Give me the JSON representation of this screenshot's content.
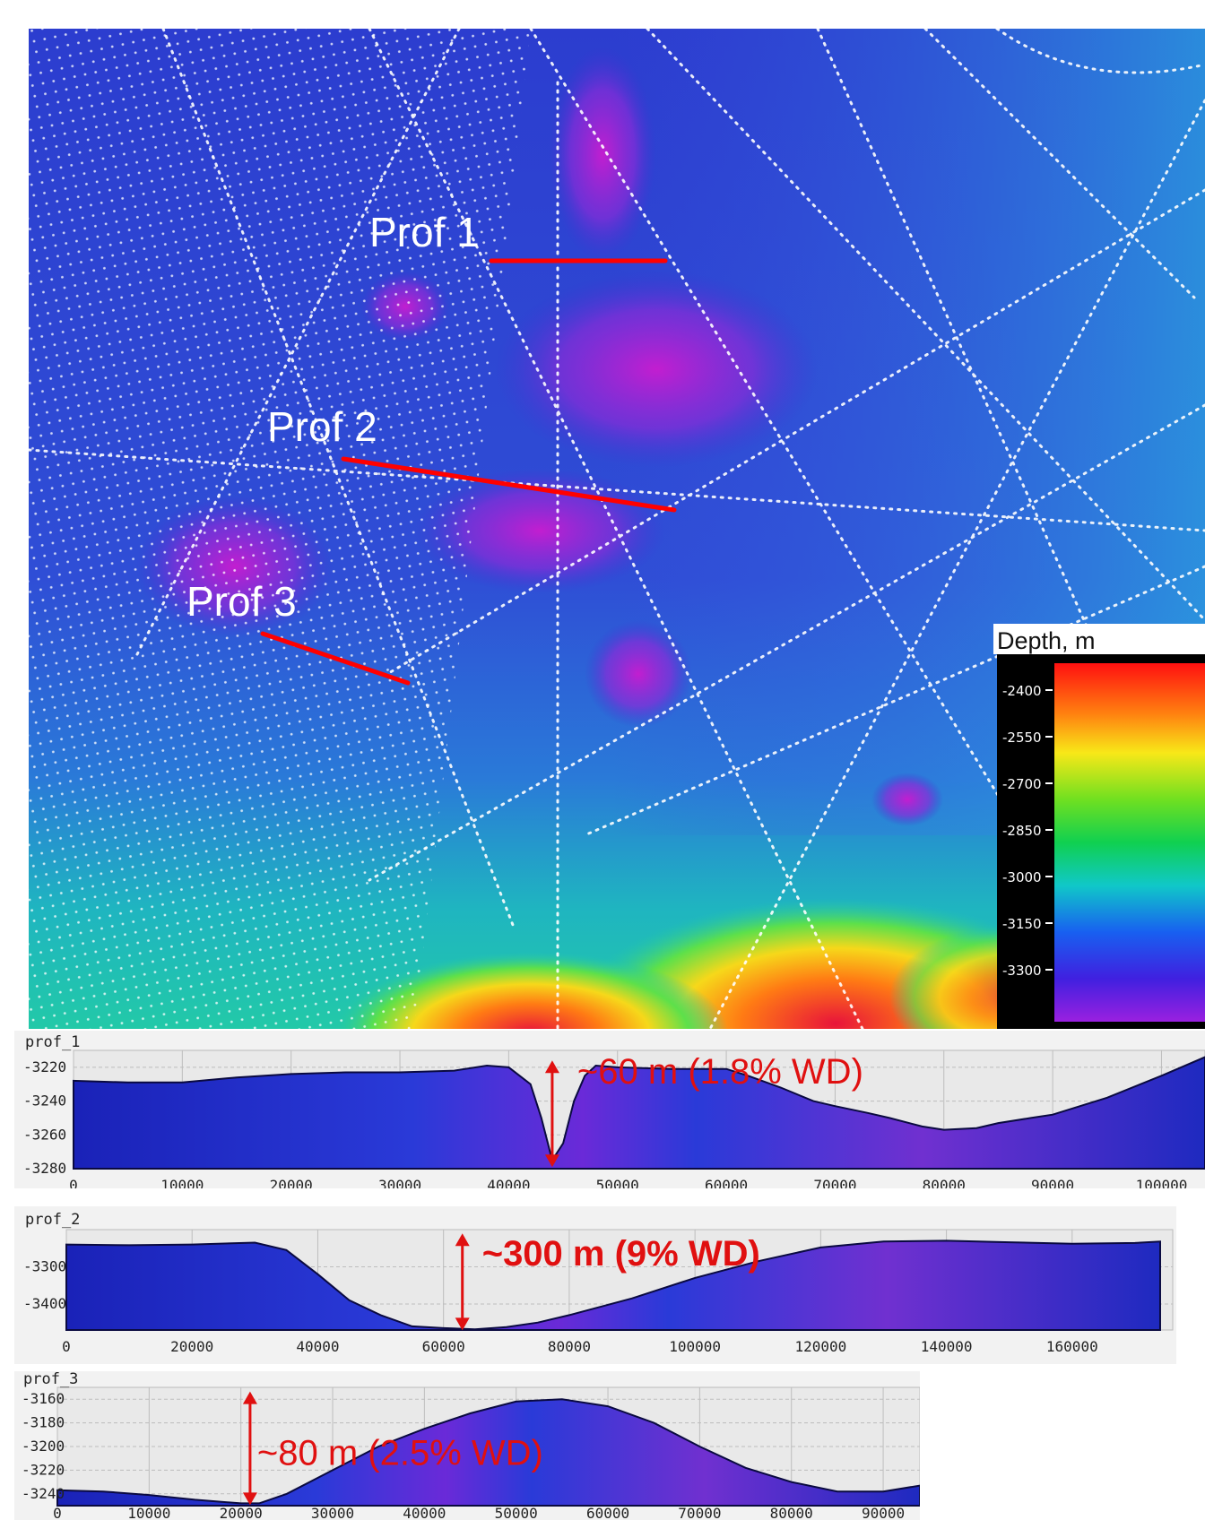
{
  "map": {
    "profiles": [
      {
        "label": "Prof 1"
      },
      {
        "label": "Prof 2"
      },
      {
        "label": "Prof 3"
      }
    ],
    "profile_line_color": "#ff0000",
    "colorbar": {
      "title": "Depth, m",
      "ticks": [
        "-2400",
        "-2550",
        "-2700",
        "-2850",
        "-3000",
        "-3150",
        "-3300"
      ]
    }
  },
  "chart_data": [
    {
      "type": "area",
      "title": "prof_1",
      "xlim": [
        0,
        104000
      ],
      "ylim": [
        -3280,
        -3210
      ],
      "xticks": [
        0,
        10000,
        20000,
        30000,
        40000,
        50000,
        60000,
        70000,
        80000,
        90000,
        100000
      ],
      "yticks": [
        -3220,
        -3240,
        -3260,
        -3280
      ],
      "x": [
        0,
        5000,
        10000,
        15000,
        20000,
        25000,
        30000,
        35000,
        38000,
        40000,
        42000,
        43000,
        44000,
        45000,
        46000,
        47000,
        48000,
        50000,
        55000,
        60000,
        62000,
        65000,
        68000,
        70000,
        73000,
        75000,
        78000,
        80000,
        83000,
        85000,
        88000,
        90000,
        95000,
        100000,
        104000
      ],
      "y": [
        -3228,
        -3229,
        -3229,
        -3226,
        -3224,
        -3223,
        -3223,
        -3222,
        -3219,
        -3220,
        -3230,
        -3250,
        -3275,
        -3265,
        -3240,
        -3225,
        -3219,
        -3220,
        -3221,
        -3221,
        -3225,
        -3232,
        -3240,
        -3243,
        -3247,
        -3250,
        -3255,
        -3257,
        -3256,
        -3253,
        -3250,
        -3248,
        -3238,
        -3225,
        -3214
      ],
      "annotation": {
        "text": "~60 m (1.8% WD)",
        "x": 44000,
        "y_top": -3217,
        "y_bottom": -3278
      }
    },
    {
      "type": "area",
      "title": "prof_2",
      "xlim": [
        0,
        176000
      ],
      "ylim": [
        -3470,
        -3200
      ],
      "xticks": [
        0,
        20000,
        40000,
        60000,
        80000,
        100000,
        120000,
        140000,
        160000
      ],
      "yticks": [
        -3300,
        -3400
      ],
      "x": [
        0,
        10000,
        20000,
        30000,
        35000,
        40000,
        45000,
        50000,
        55000,
        60000,
        65000,
        70000,
        75000,
        80000,
        90000,
        100000,
        110000,
        120000,
        130000,
        140000,
        150000,
        160000,
        170000,
        174000
      ],
      "y": [
        -3240,
        -3242,
        -3240,
        -3235,
        -3255,
        -3320,
        -3390,
        -3430,
        -3460,
        -3465,
        -3468,
        -3462,
        -3450,
        -3430,
        -3385,
        -3330,
        -3285,
        -3248,
        -3232,
        -3230,
        -3234,
        -3238,
        -3236,
        -3232
      ],
      "annotation": {
        "text": "~300 m (9% WD)",
        "x": 63000,
        "y_top": -3215,
        "y_bottom": -3466
      }
    },
    {
      "type": "area",
      "title": "prof_3",
      "xlim": [
        0,
        94000
      ],
      "ylim": [
        -3250,
        -3150
      ],
      "xticks": [
        0,
        10000,
        20000,
        30000,
        40000,
        50000,
        60000,
        70000,
        80000,
        90000
      ],
      "yticks": [
        -3160,
        -3180,
        -3200,
        -3220,
        -3240
      ],
      "x": [
        0,
        5000,
        10000,
        15000,
        20000,
        22000,
        25000,
        30000,
        35000,
        40000,
        45000,
        50000,
        55000,
        60000,
        65000,
        70000,
        75000,
        80000,
        85000,
        90000,
        94000
      ],
      "y": [
        -3237,
        -3238,
        -3241,
        -3245,
        -3248,
        -3248,
        -3240,
        -3220,
        -3200,
        -3185,
        -3172,
        -3162,
        -3160,
        -3166,
        -3180,
        -3200,
        -3218,
        -3230,
        -3238,
        -3238,
        -3233
      ],
      "annotation": {
        "text": "~80 m (2.5% WD)",
        "x": 21000,
        "y_top": -3155,
        "y_bottom": -3248
      }
    }
  ]
}
